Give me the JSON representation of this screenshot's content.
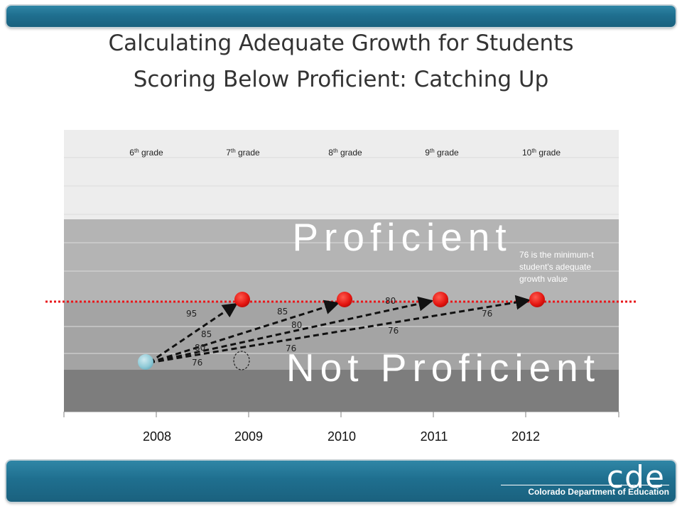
{
  "title": {
    "line1": "Calculating Adequate Growth for Students",
    "line2": "Scoring Below Proficient: Catching Up"
  },
  "grades": [
    "6th grade",
    "7th grade",
    "8th grade",
    "9th grade",
    "10th grade"
  ],
  "grade_labels": [
    {
      "num": "6",
      "sup": "th",
      "rest": " grade"
    },
    {
      "num": "7",
      "sup": "th",
      "rest": " grade"
    },
    {
      "num": "8",
      "sup": "th",
      "rest": " grade"
    },
    {
      "num": "9",
      "sup": "th",
      "rest": " grade"
    },
    {
      "num": "10",
      "sup": "th",
      "rest": " grade"
    }
  ],
  "years": [
    "2008",
    "2009",
    "2010",
    "2011",
    "2012"
  ],
  "bands": {
    "proficient": "Proficient",
    "not_proficient": "Not Proficient"
  },
  "annotation": "76 is the minimum-to student's adequate growth value",
  "annotation_lines": [
    "76 is the minimum-t",
    "student's adequate",
    "growth value"
  ],
  "growth_labels": {
    "to_2009": [
      "95",
      "85",
      "80",
      "76"
    ],
    "to_2010": [
      "85",
      "80",
      "76"
    ],
    "to_2011": [
      "80",
      "76"
    ],
    "to_2012": [
      "76"
    ]
  },
  "logo": {
    "mark": "cde",
    "name": "Colorado Department of Education"
  },
  "colors": {
    "header_bar": "#1f6f8f",
    "proficient_band": "#b4b4b4",
    "not_proficient_lower": "#a4a4a4",
    "bottom_band": "#7d7d7d",
    "target_dot": "#e8171b",
    "start_dot": "#8ec9d6",
    "cut_line": "#e8171b"
  }
}
